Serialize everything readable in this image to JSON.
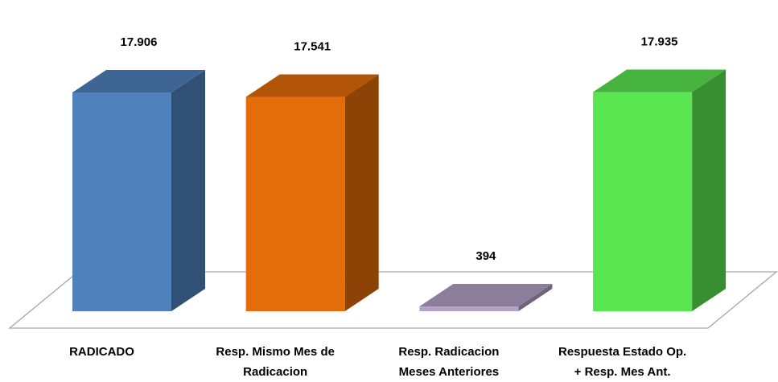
{
  "chart_data": {
    "type": "bar",
    "categories": [
      "RADICADO",
      "Resp. Mismo Mes de\nRadicacion",
      "Resp. Radicacion\nMeses Anteriores",
      "Respuesta Estado Op.\n+ Resp. Mes Ant."
    ],
    "values": [
      17906,
      17541,
      394,
      17935
    ],
    "value_labels": [
      "17.906",
      "17.541",
      "394",
      "17.935"
    ],
    "colors": [
      "#4f81bd",
      "#e46c0a",
      "#b3a2c7",
      "#5ae650"
    ]
  }
}
